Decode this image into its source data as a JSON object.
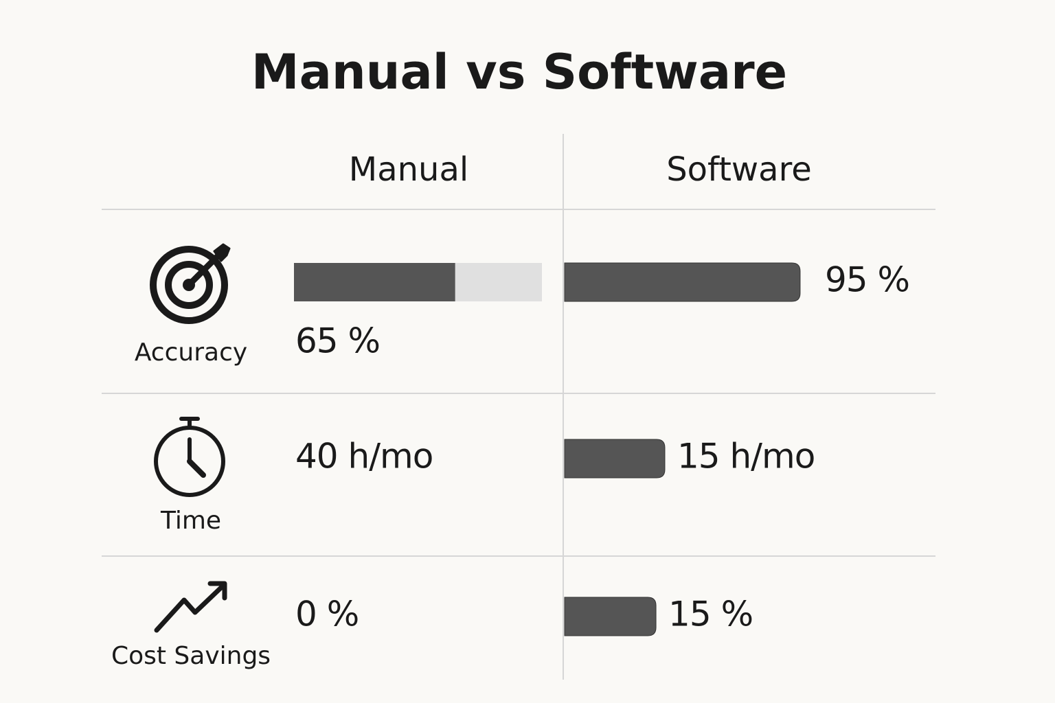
{
  "title": "Manual vs Software",
  "columns": [
    "Manual",
    "Software"
  ],
  "rows": [
    {
      "label": "Accuracy",
      "manual": {
        "value": 65,
        "value_label": "65 %",
        "bar": true,
        "track": true
      },
      "software": {
        "value": 95,
        "value_label": "95 %",
        "bar": true
      }
    },
    {
      "label": "Time",
      "manual": {
        "value": 40,
        "value_label": "40 h/mo",
        "bar": false
      },
      "software": {
        "value": 15,
        "value_label": "15 h/mo",
        "bar": true
      }
    },
    {
      "label": "Cost Savings",
      "manual": {
        "value": 0,
        "value_label": "0 %",
        "bar": false
      },
      "software": {
        "value": 15,
        "value_label": "15 %",
        "bar": true
      }
    }
  ]
}
